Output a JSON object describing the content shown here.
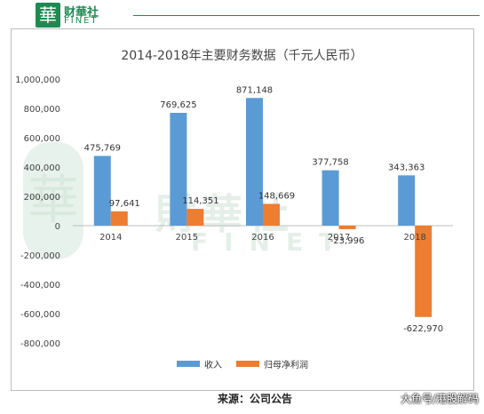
{
  "header": {
    "logo_glyph": "華",
    "brand_cn": "财華社",
    "brand_en": "FINET"
  },
  "watermark": {
    "cn": "財華社",
    "en": "FINET"
  },
  "footer": {
    "source": "来源：公司公告",
    "watermark": "大鱼号/港股解码"
  },
  "chart_data": {
    "type": "bar",
    "title": "2014-2018年主要财务数据（千元人民币）",
    "categories": [
      "2014",
      "2015",
      "2016",
      "2017",
      "2018"
    ],
    "series": [
      {
        "name": "收入",
        "color": "#5b9bd5",
        "values": [
          475769,
          769625,
          871148,
          377758,
          343363
        ],
        "labels": [
          "475,769",
          "769,625",
          "871,148",
          "377,758",
          "343,363"
        ]
      },
      {
        "name": "归母净利润",
        "color": "#ed7d31",
        "values": [
          97641,
          114351,
          148669,
          -23996,
          -622970
        ],
        "labels": [
          "97,641",
          "114,351",
          "148,669",
          "-23,996",
          "-622,970"
        ]
      }
    ],
    "ylim": [
      -800000,
      1000000
    ],
    "yticks": [
      "1,000,000",
      "800,000",
      "600,000",
      "400,000",
      "200,000",
      "0",
      "-200,000",
      "-400,000",
      "-600,000",
      "-800,000"
    ],
    "legend_position": "bottom",
    "grid": false
  }
}
